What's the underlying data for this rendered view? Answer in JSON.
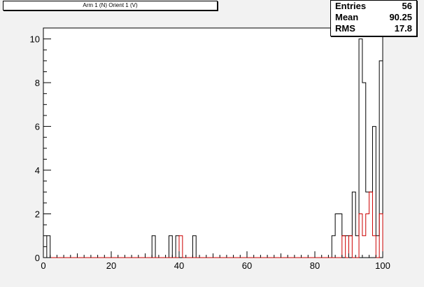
{
  "title": "Arm 1 (N) Orient 1 (V)",
  "stats": {
    "rows": [
      {
        "key": "Entries",
        "value": "56"
      },
      {
        "key": "Mean",
        "value": "90.25"
      },
      {
        "key": "RMS",
        "value": "17.8"
      }
    ]
  },
  "chart_data": {
    "type": "histogram",
    "xlim": [
      0,
      100
    ],
    "ylim": [
      0,
      10.5
    ],
    "bin_width": 1,
    "x_ticks": [
      0,
      20,
      40,
      60,
      80,
      100
    ],
    "y_ticks": [
      0,
      2,
      4,
      6,
      8,
      10
    ],
    "series": [
      {
        "color": "#000000",
        "bins": [
          {
            "x": 2,
            "y": 1
          },
          {
            "x": 33,
            "y": 1
          },
          {
            "x": 38,
            "y": 1
          },
          {
            "x": 40,
            "y": 1
          },
          {
            "x": 45,
            "y": 1
          },
          {
            "x": 86,
            "y": 1
          },
          {
            "x": 87,
            "y": 2
          },
          {
            "x": 88,
            "y": 2
          },
          {
            "x": 89,
            "y": 1
          },
          {
            "x": 90,
            "y": 1
          },
          {
            "x": 91,
            "y": 1
          },
          {
            "x": 92,
            "y": 3
          },
          {
            "x": 93,
            "y": 1
          },
          {
            "x": 94,
            "y": 10
          },
          {
            "x": 95,
            "y": 8
          },
          {
            "x": 96,
            "y": 3
          },
          {
            "x": 97,
            "y": 3
          },
          {
            "x": 98,
            "y": 6
          },
          {
            "x": 99,
            "y": 1
          },
          {
            "x": 100,
            "y": 9
          }
        ]
      },
      {
        "color": "#cc0000",
        "bins": [
          {
            "x": 41,
            "y": 1
          },
          {
            "x": 89,
            "y": 1
          },
          {
            "x": 91,
            "y": 1
          },
          {
            "x": 94,
            "y": 2
          },
          {
            "x": 95,
            "y": 1
          },
          {
            "x": 96,
            "y": 2
          },
          {
            "x": 97,
            "y": 3
          },
          {
            "x": 98,
            "y": 1
          },
          {
            "x": 100,
            "y": 2
          }
        ]
      }
    ]
  }
}
